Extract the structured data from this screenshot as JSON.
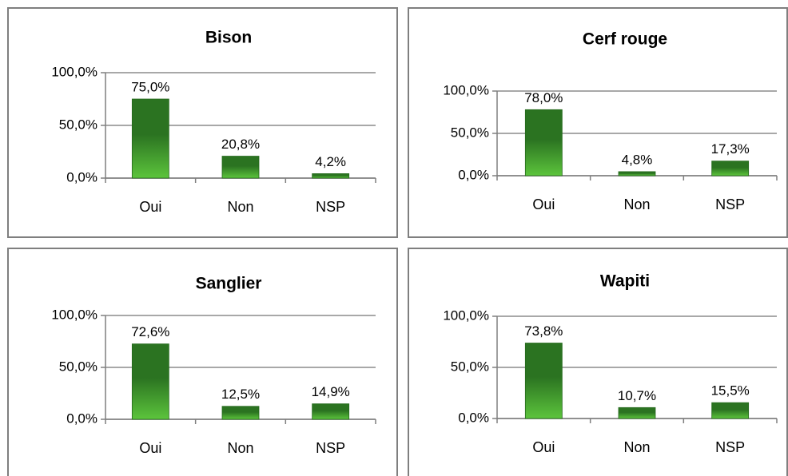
{
  "chart_data": [
    {
      "type": "bar",
      "title": "Bison",
      "categories": [
        "Oui",
        "Non",
        "NSP"
      ],
      "values": [
        75.0,
        20.8,
        4.2
      ],
      "value_labels": [
        "75,0%",
        "20,8%",
        "4,2%"
      ],
      "color": "#2b7321",
      "ylim": [
        0,
        100
      ],
      "yticks": [
        {
          "value": 0,
          "label": "0,0%"
        },
        {
          "value": 50,
          "label": "50,0%"
        },
        {
          "value": 100,
          "label": "100,0%"
        }
      ],
      "grid": true
    },
    {
      "type": "bar",
      "title": "Cerf rouge",
      "categories": [
        "Oui",
        "Non",
        "NSP"
      ],
      "values": [
        78.0,
        4.8,
        17.3
      ],
      "value_labels": [
        "78,0%",
        "4,8%",
        "17,3%"
      ],
      "color": "#2b7321",
      "ylim": [
        0,
        100
      ],
      "yticks": [
        {
          "value": 0,
          "label": "0,0%"
        },
        {
          "value": 50,
          "label": "50,0%"
        },
        {
          "value": 100,
          "label": "100,0%"
        }
      ],
      "grid": true
    },
    {
      "type": "bar",
      "title": "Sanglier",
      "categories": [
        "Oui",
        "Non",
        "NSP"
      ],
      "values": [
        72.6,
        12.5,
        14.9
      ],
      "value_labels": [
        "72,6%",
        "12,5%",
        "14,9%"
      ],
      "color": "#2b7321",
      "ylim": [
        0,
        100
      ],
      "yticks": [
        {
          "value": 0,
          "label": "0,0%"
        },
        {
          "value": 50,
          "label": "50,0%"
        },
        {
          "value": 100,
          "label": "100,0%"
        }
      ],
      "grid": true
    },
    {
      "type": "bar",
      "title": "Wapiti",
      "categories": [
        "Oui",
        "Non",
        "NSP"
      ],
      "values": [
        73.8,
        10.7,
        15.5
      ],
      "value_labels": [
        "73,8%",
        "10,7%",
        "15,5%"
      ],
      "color": "#2b7321",
      "ylim": [
        0,
        100
      ],
      "yticks": [
        {
          "value": 0,
          "label": "0,0%"
        },
        {
          "value": 50,
          "label": "50,0%"
        },
        {
          "value": 100,
          "label": "100,0%"
        }
      ],
      "grid": true
    }
  ]
}
